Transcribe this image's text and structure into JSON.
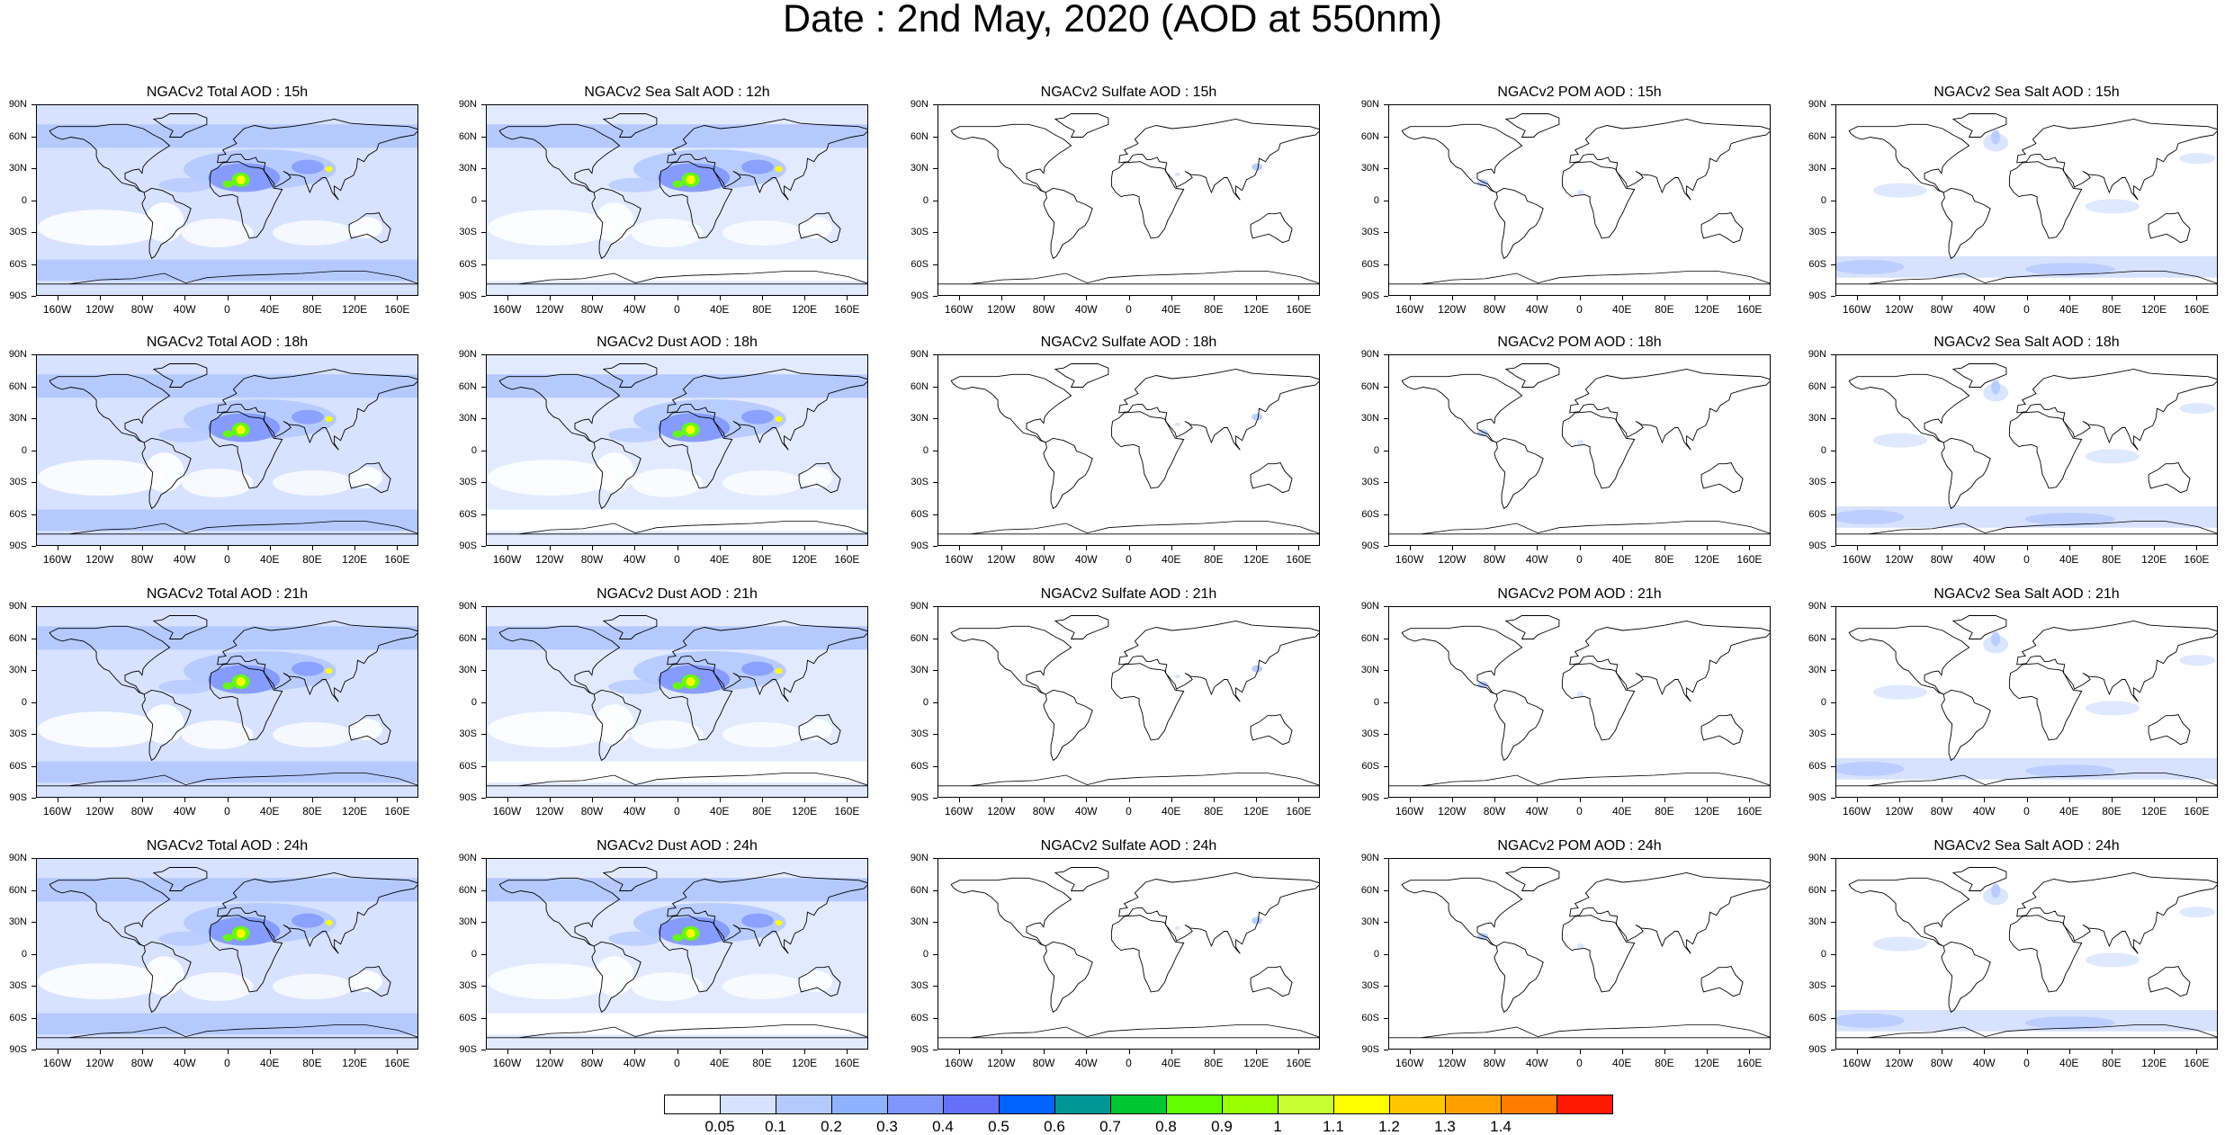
{
  "title": "Date : 2nd May, 2020 (AOD at 550nm)",
  "lat_labels": [
    "90N",
    "60N",
    "30N",
    "0",
    "30S",
    "60S",
    "90S"
  ],
  "lon_labels": [
    "160W",
    "120W",
    "80W",
    "40W",
    "0",
    "40E",
    "80E",
    "120E",
    "160E"
  ],
  "panel_rows": [
    [
      "NGACv2 Total AOD : 15h",
      "NGACv2 Sea Salt  AOD : 12h",
      "NGACv2 Sulfate AOD : 15h",
      "NGACv2 POM AOD : 15h",
      "NGACv2 Sea Salt  AOD : 15h"
    ],
    [
      "NGACv2 Total AOD : 18h",
      "NGACv2 Dust AOD : 18h",
      "NGACv2 Sulfate AOD : 18h",
      "NGACv2 POM AOD : 18h",
      "NGACv2 Sea Salt  AOD : 18h"
    ],
    [
      "NGACv2 Total AOD : 21h",
      "NGACv2 Dust AOD : 21h",
      "NGACv2 Sulfate AOD : 21h",
      "NGACv2 POM AOD : 21h",
      "NGACv2 Sea Salt  AOD : 21h"
    ],
    [
      "NGACv2 Total AOD : 24h",
      "NGACv2 Dust AOD : 24h",
      "NGACv2 Sulfate AOD : 24h",
      "NGACv2 POM AOD : 24h",
      "NGACv2 Sea Salt  AOD : 24h"
    ]
  ],
  "colorbar": {
    "labels": [
      "0.05",
      "0.1",
      "0.2",
      "0.3",
      "0.4",
      "0.5",
      "0.6",
      "0.7",
      "0.8",
      "0.9",
      "1",
      "1.1",
      "1.2",
      "1.3",
      "1.4"
    ],
    "colors": [
      "#ffffff",
      "#d6e2ff",
      "#b5c9ff",
      "#8eb2ff",
      "#7f96ff",
      "#6370f7",
      "#0063ff",
      "#009696",
      "#00c633",
      "#63ff00",
      "#96ff00",
      "#c6ff33",
      "#ffff00",
      "#ffc600",
      "#ffa000",
      "#ff7c00",
      "#ff1900"
    ]
  },
  "colors": {
    "ocean_light": "#d6e2ff",
    "ocean_mid": "#b5c9ff",
    "dust_blue": "#7f96ff",
    "dust_hot_yellow": "#ffff00",
    "dust_hot_green": "#63ff00",
    "coast": "#000000"
  }
}
